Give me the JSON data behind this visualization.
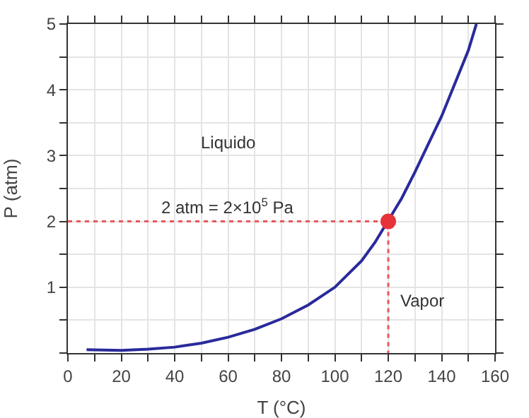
{
  "chart_data": {
    "type": "line",
    "xlabel": "T (°C)",
    "ylabel": "P (atm)",
    "xlim": [
      0,
      160
    ],
    "ylim": [
      0,
      5
    ],
    "xticks": [
      0,
      {
        "value": 10,
        "label": null
      },
      20,
      {
        "value": 30,
        "label": null
      },
      40,
      {
        "value": 50,
        "label": null
      },
      60,
      {
        "value": 70,
        "label": null
      },
      80,
      {
        "value": 90,
        "label": null
      },
      100,
      {
        "value": 110,
        "label": null
      },
      120,
      {
        "value": 130,
        "label": null
      },
      140,
      {
        "value": 150,
        "label": null
      },
      160
    ],
    "yticks": [
      {
        "value": 0,
        "label": null
      },
      {
        "value": 0.5,
        "label": null
      },
      1,
      {
        "value": 1.5,
        "label": null
      },
      2,
      {
        "value": 2.5,
        "label": null
      },
      3,
      {
        "value": 3.5,
        "label": null
      },
      4,
      {
        "value": 4.5,
        "label": null
      },
      5
    ],
    "grid": true,
    "series": [
      {
        "color": "#2a2a9c",
        "x": [
          7,
          20,
          30,
          40,
          50,
          60,
          70,
          80,
          90,
          100,
          110,
          115,
          125,
          130,
          140,
          150,
          153
        ],
        "values": [
          0.05,
          0.04,
          0.06,
          0.09,
          0.15,
          0.24,
          0.36,
          0.52,
          0.73,
          1.0,
          1.4,
          1.68,
          2.35,
          2.75,
          3.6,
          4.6,
          5.0
        ],
        "marker": "none",
        "line_style": "solid"
      },
      {
        "color": "#e8585c",
        "x": [
          0,
          120,
          120
        ],
        "values": [
          2,
          2,
          0
        ],
        "marker": "none",
        "line_style": "dotted"
      },
      {
        "type": "scatter",
        "color": "#e8323a",
        "x": [
          120
        ],
        "values": [
          2
        ],
        "marker": "circle"
      }
    ],
    "annotations": [
      "Liquido",
      "2 atm = 2×10$^{5}$ Pa",
      "Vapor"
    ]
  }
}
